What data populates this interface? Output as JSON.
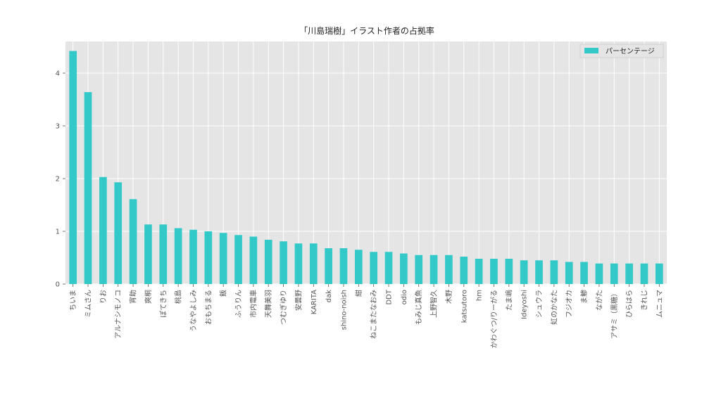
{
  "chart_data": {
    "type": "bar",
    "title": "「川島瑞樹」イラスト作者の占拠率",
    "xlabel": "",
    "ylabel": "",
    "legend": "top-right",
    "grid": true,
    "ylim": [
      0,
      4.6
    ],
    "yticks": [
      0,
      1,
      2,
      3,
      4
    ],
    "series": [
      {
        "name": "パーセンテージ",
        "color": "#33c9c9",
        "values": [
          4.42,
          3.64,
          2.03,
          1.93,
          1.61,
          1.13,
          1.13,
          1.06,
          1.03,
          1.0,
          0.97,
          0.93,
          0.9,
          0.84,
          0.81,
          0.77,
          0.77,
          0.68,
          0.68,
          0.65,
          0.61,
          0.61,
          0.58,
          0.55,
          0.55,
          0.55,
          0.52,
          0.48,
          0.48,
          0.48,
          0.45,
          0.45,
          0.45,
          0.42,
          0.42,
          0.39,
          0.39,
          0.39,
          0.39,
          0.39
        ]
      }
    ],
    "categories": [
      "ちいま",
      "ミムさん",
      "りお",
      "アルナシモノコ",
      "宵助",
      "爽桐",
      "ぽてきち",
      "桃島",
      "うなやよしみ",
      "おもちまる",
      "飯",
      "ふうりん",
      "市内電車",
      "天舞美羽",
      "つむぎゆり",
      "安曇野",
      "KARITA",
      "dak",
      "shino-noish",
      "紺",
      "ねこまたなおみ",
      "DDT",
      "odio",
      "もみじ真魚",
      "上野智久",
      "木野",
      "katsutoro",
      "hm",
      "かわぐつ/りーがる",
      "たま嶋",
      "Ideyoshi",
      "シュウラ",
      "虹のかなた",
      "フジオカ",
      "ま鯵",
      "ながた",
      "アサミ（黒糖）",
      "ひらはら",
      "きれじ",
      "ムニュマ"
    ]
  },
  "colors": {
    "plot_background": "#e5e5e5",
    "grid": "#ffffff",
    "bar": "#33c9c9"
  }
}
